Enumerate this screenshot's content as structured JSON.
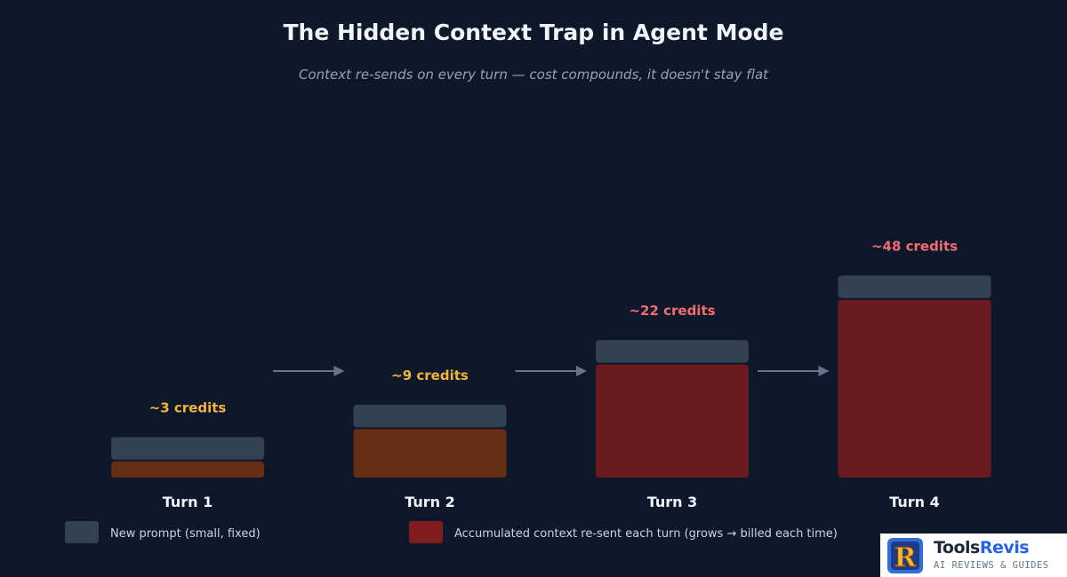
{
  "chart_data": {
    "type": "bar",
    "stacked": true,
    "title": "The Hidden Context Trap in Agent Mode",
    "subtitle": "Context re-sends on every turn — cost compounds, it doesn't stay flat",
    "categories": [
      "Turn 1",
      "Turn 2",
      "Turn 3",
      "Turn 4"
    ],
    "series": [
      {
        "name": "Accumulated context re-sent each turn (grows → billed each time)",
        "values": [
          1,
          3,
          7,
          11
        ]
      },
      {
        "name": "New prompt (small, fixed)",
        "values": [
          1.4,
          1.4,
          1.4,
          1.4
        ]
      }
    ],
    "data_labels": [
      "~3 credits",
      "~9 credits",
      "~22 credits",
      "~48 credits"
    ],
    "colors": {
      "background": "#0f172a",
      "new_prompt": "#334155",
      "context_early": "#662f14",
      "context_late": "#6b1b1f",
      "label_low": "#f0b43c",
      "label_high": "#f06e6e",
      "arrow": "#64748b"
    },
    "legend_position": "bottom",
    "grid": false
  },
  "legend": {
    "new_prompt": "New prompt (small, fixed)",
    "context": "Accumulated context re-sent each turn (grows → billed each time)"
  },
  "logo": {
    "name_part1": "Tools",
    "name_part2": "Revis",
    "tagline": "AI REVIEWS & GUIDES",
    "badge_letter": "R"
  }
}
